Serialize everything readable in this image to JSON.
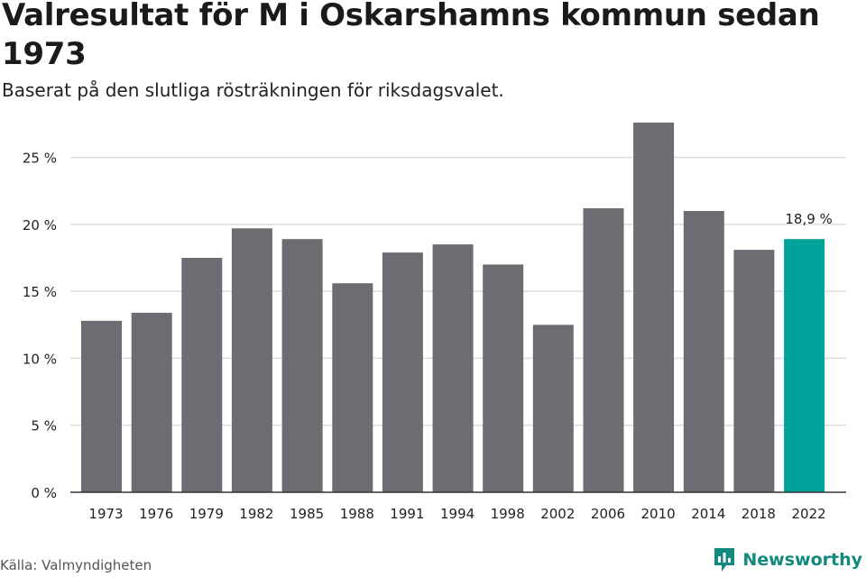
{
  "header": {
    "title": "Valresultat för M i Oskarshamns kommun sedan 1973",
    "subtitle": "Baserat på den slutliga rösträkningen för riksdagsvalet."
  },
  "footer": {
    "source": "Källa: Valmyndigheten",
    "brand_name": "Newsworthy",
    "brand_icon": "newsworthy-logo-icon"
  },
  "colors": {
    "bar": "#6d6c72",
    "highlight": "#00a39a",
    "grid": "#dcdcdc",
    "axis": "#333333",
    "brand": "#12897f"
  },
  "chart_data": {
    "type": "bar",
    "categories": [
      "1973",
      "1976",
      "1979",
      "1982",
      "1985",
      "1988",
      "1991",
      "1994",
      "1998",
      "2002",
      "2006",
      "2010",
      "2014",
      "2018",
      "2022"
    ],
    "values": [
      12.8,
      13.4,
      17.5,
      19.7,
      18.9,
      15.6,
      17.9,
      18.5,
      17.0,
      12.5,
      21.2,
      27.6,
      21.0,
      18.1,
      18.9
    ],
    "highlight_index": 14,
    "annotation": {
      "index": 14,
      "text": "18,9 %"
    },
    "yticks": [
      0,
      5,
      10,
      15,
      20,
      25
    ],
    "ytick_labels": [
      "0 %",
      "5 %",
      "10 %",
      "15 %",
      "20 %",
      "25 %"
    ],
    "ylim": [
      0,
      28
    ],
    "grid": true,
    "title": "Valresultat för M i Oskarshamns kommun sedan 1973",
    "xlabel": "",
    "ylabel": ""
  }
}
